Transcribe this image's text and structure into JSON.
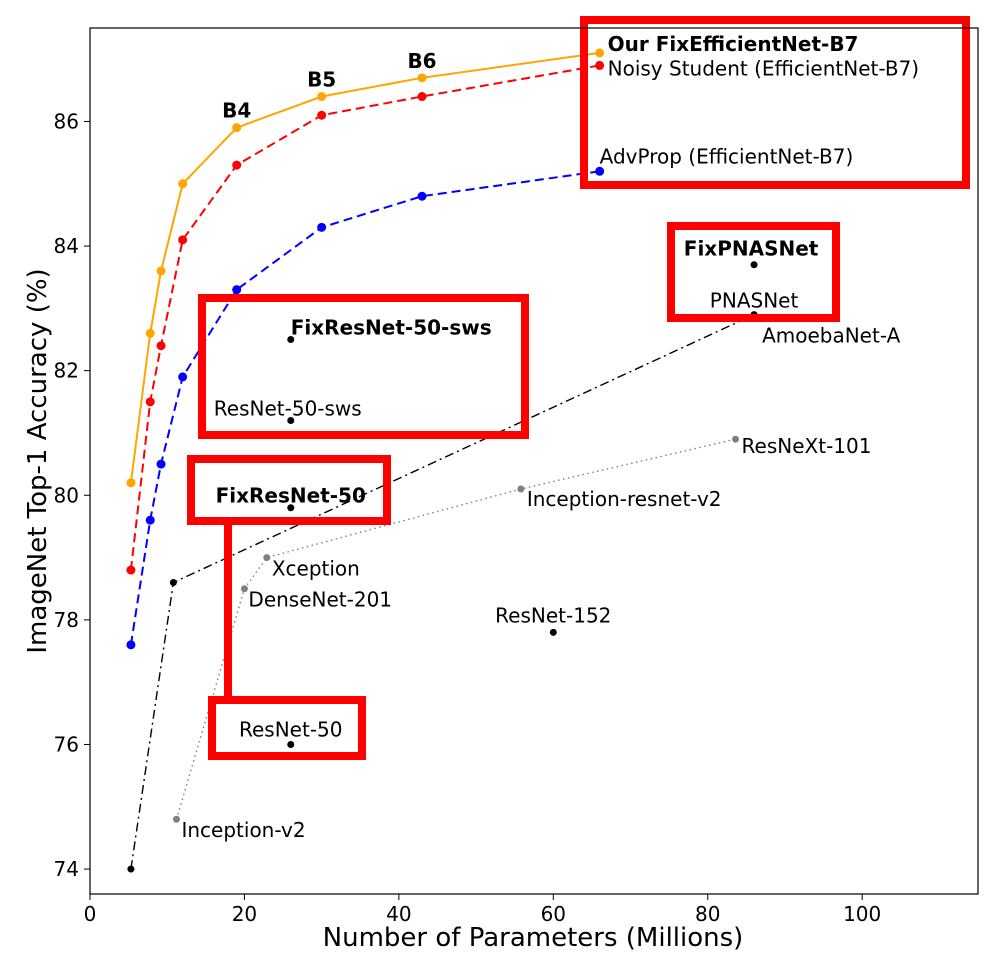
{
  "chart_data": {
    "type": "line",
    "title": "",
    "xlabel": "Number of Parameters (Millions)",
    "ylabel": "ImageNet Top-1 Accuracy (%)",
    "xlim": [
      0,
      115
    ],
    "ylim": [
      73.6,
      87.5
    ],
    "xticks": [
      0,
      20,
      40,
      60,
      80,
      100
    ],
    "yticks": [
      74,
      76,
      78,
      80,
      82,
      84,
      86
    ],
    "grid": false,
    "series": [
      {
        "color": "#ffa500",
        "linestyle": "solid",
        "points": [
          [
            5.3,
            80.2
          ],
          [
            7.8,
            82.6
          ],
          [
            9.2,
            83.6
          ],
          [
            12,
            85.0
          ],
          [
            19,
            85.9
          ],
          [
            30,
            86.4
          ],
          [
            43,
            86.7
          ],
          [
            66,
            87.1
          ]
        ]
      },
      {
        "color": "#ff0000",
        "linestyle": "dashed",
        "points": [
          [
            5.3,
            78.8
          ],
          [
            7.8,
            81.5
          ],
          [
            9.2,
            82.4
          ],
          [
            12,
            84.1
          ],
          [
            19,
            85.3
          ],
          [
            30,
            86.1
          ],
          [
            43,
            86.4
          ],
          [
            66,
            86.9
          ]
        ]
      },
      {
        "color": "#0000ff",
        "linestyle": "dashed",
        "points": [
          [
            5.3,
            77.6
          ],
          [
            7.8,
            79.6
          ],
          [
            9.2,
            80.5
          ],
          [
            12,
            81.9
          ],
          [
            19,
            83.3
          ],
          [
            30,
            84.3
          ],
          [
            43,
            84.8
          ],
          [
            66,
            85.2
          ]
        ]
      },
      {
        "color": "#000000",
        "linestyle": "dashdot",
        "points": [
          [
            5.3,
            74.0
          ],
          [
            10.8,
            78.6
          ],
          [
            86,
            82.9
          ]
        ]
      },
      {
        "color": "#808080",
        "linestyle": "dotted",
        "points": [
          [
            11.2,
            74.8
          ],
          [
            20,
            78.5
          ],
          [
            22.9,
            79.0
          ],
          [
            55.8,
            80.1
          ],
          [
            83.6,
            80.9
          ]
        ]
      }
    ],
    "standalone_points": [
      {
        "x": 26,
        "y": 82.5,
        "color": "#000000"
      },
      {
        "x": 26,
        "y": 81.2,
        "color": "#000000"
      },
      {
        "x": 26,
        "y": 79.8,
        "color": "#000000"
      },
      {
        "x": 26,
        "y": 76.0,
        "color": "#000000"
      },
      {
        "x": 60,
        "y": 77.8,
        "color": "#000000"
      },
      {
        "x": 86,
        "y": 83.7,
        "color": "#000000"
      }
    ],
    "annotations": [
      {
        "text": "Our FixEfficientNet-B7",
        "x": 66,
        "y": 87.1,
        "bold": true
      },
      {
        "text": "Noisy Student (EfficientNet-B7)",
        "x": 66,
        "y": 86.9,
        "bold": false
      },
      {
        "text": "AdvProp (EfficientNet-B7)",
        "x": 66,
        "y": 85.2,
        "bold": false
      },
      {
        "text": "B4",
        "x": 19,
        "y": 85.9,
        "bold": true
      },
      {
        "text": "B5",
        "x": 30,
        "y": 86.4,
        "bold": true
      },
      {
        "text": "B6",
        "x": 43,
        "y": 86.7,
        "bold": true
      },
      {
        "text": "FixPNASNet",
        "x": 86,
        "y": 83.7,
        "bold": true
      },
      {
        "text": "PNASNet",
        "x": 86,
        "y": 82.9,
        "bold": false
      },
      {
        "text": "AmoebaNet-A",
        "x": 86,
        "y": 82.9,
        "bold": false
      },
      {
        "text": "FixResNet-50-sws",
        "x": 26,
        "y": 82.5,
        "bold": true
      },
      {
        "text": "ResNet-50-sws",
        "x": 26,
        "y": 81.2,
        "bold": false
      },
      {
        "text": "FixResNet-50",
        "x": 26,
        "y": 79.8,
        "bold": true
      },
      {
        "text": "ResNet-50",
        "x": 26,
        "y": 76.0,
        "bold": false
      },
      {
        "text": "ResNeXt-101",
        "x": 83.6,
        "y": 80.9,
        "bold": false
      },
      {
        "text": "Inception-resnet-v2",
        "x": 55.8,
        "y": 80.1,
        "bold": false
      },
      {
        "text": "Xception",
        "x": 22.9,
        "y": 79.0,
        "bold": false
      },
      {
        "text": "DenseNet-201",
        "x": 20,
        "y": 78.5,
        "bold": false
      },
      {
        "text": "ResNet-152",
        "x": 60,
        "y": 77.8,
        "bold": false
      },
      {
        "text": "Inception-v2",
        "x": 11.2,
        "y": 74.8,
        "bold": false
      }
    ],
    "highlight_color": "#ff0000"
  }
}
